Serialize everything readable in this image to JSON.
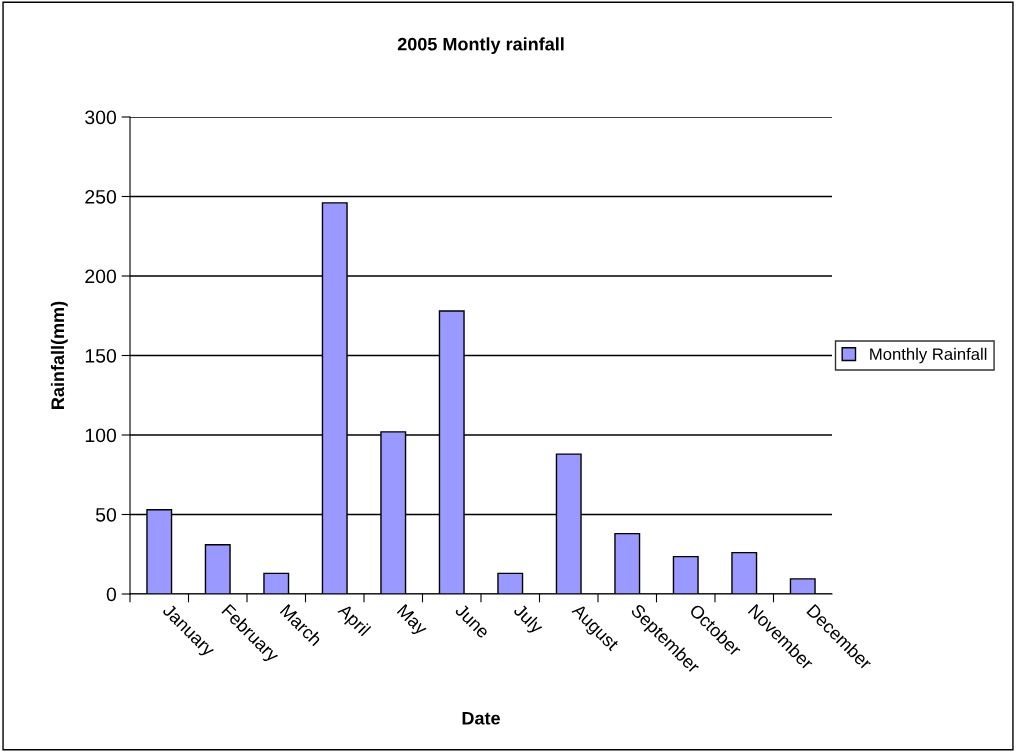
{
  "chart_data": {
    "type": "bar",
    "title": "2005 Montly rainfall",
    "xlabel": "Date",
    "ylabel": "Rainfall(mm)",
    "categories": [
      "January",
      "February",
      "March",
      "April",
      "May",
      "June",
      "July",
      "August",
      "September",
      "October",
      "November",
      "December"
    ],
    "series": [
      {
        "name": "Monthly Rainfall",
        "color": "#9999ff",
        "values": [
          53,
          31,
          13,
          246,
          102,
          178,
          13,
          88,
          38,
          23.5,
          26,
          9.5
        ]
      }
    ],
    "ylim": [
      0,
      300
    ],
    "yticks": [
      0,
      50,
      100,
      150,
      200,
      250,
      300
    ],
    "grid": "y",
    "legend": "right"
  }
}
